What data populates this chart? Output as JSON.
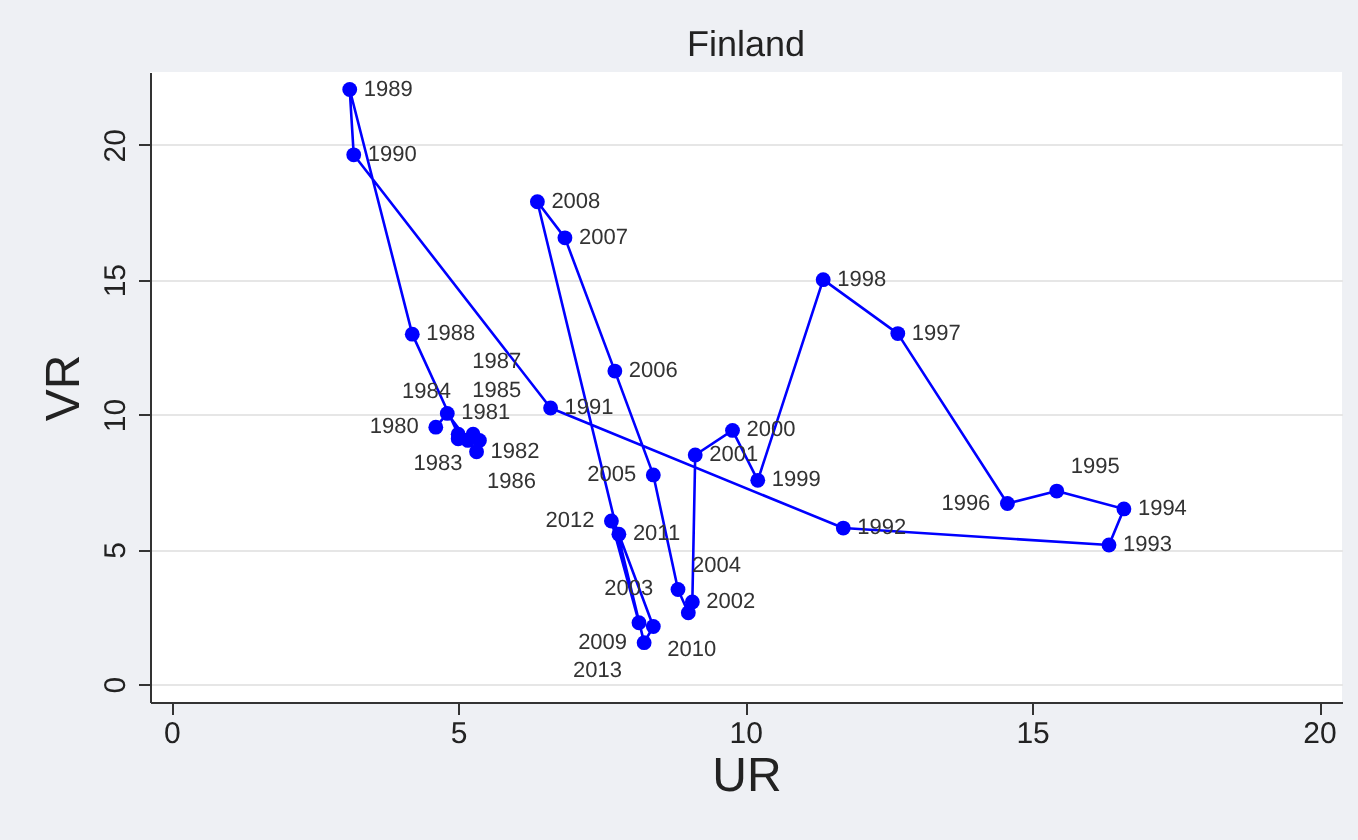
{
  "chart_data": {
    "type": "line",
    "title": "Finland",
    "xlabel": "UR",
    "ylabel": "VR",
    "xlim": [
      -0.37,
      20.4
    ],
    "ylim": [
      -0.66,
      22.7
    ],
    "xticks": [
      0,
      5,
      10,
      15,
      20
    ],
    "yticks": [
      0,
      5,
      10,
      15,
      20
    ],
    "grid": "y",
    "marker": "circle",
    "line_style": "solid",
    "series": [
      {
        "color": "#0000ff",
        "x": [
          4.61,
          4.81,
          5.32,
          5.37,
          5.17,
          5.0,
          5.26,
          5.0,
          4.2,
          3.11,
          3.18,
          6.61,
          11.71,
          16.34,
          16.6,
          15.43,
          14.57,
          12.66,
          11.36,
          10.22,
          9.78,
          9.13,
          9.08,
          9.01,
          8.83,
          8.4,
          7.73,
          6.86,
          6.38,
          8.24,
          8.4,
          7.8,
          7.67,
          8.15
        ],
        "values": [
          9.53,
          10.04,
          8.62,
          9.04,
          9.04,
          9.1,
          9.27,
          9.27,
          12.98,
          22.05,
          19.63,
          10.24,
          5.79,
          5.16,
          6.5,
          7.16,
          6.7,
          13.0,
          15.0,
          7.56,
          9.41,
          8.5,
          3.05,
          2.65,
          3.51,
          7.76,
          11.61,
          16.55,
          17.89,
          1.54,
          2.14,
          5.56,
          6.05,
          2.28
        ]
      }
    ],
    "annotations": [
      {
        "text": "1980",
        "x": 4.61,
        "y": 9.53
      },
      {
        "text": "1981",
        "x": 4.81,
        "y": 10.04
      },
      {
        "text": "1982",
        "x": 5.32,
        "y": 8.62
      },
      {
        "text": "1983",
        "x": 5.37,
        "y": 9.04
      },
      {
        "text": "1984",
        "x": 5.17,
        "y": 9.04
      },
      {
        "text": "1985",
        "x": 5.0,
        "y": 9.1
      },
      {
        "text": "1986",
        "x": 5.26,
        "y": 9.27
      },
      {
        "text": "1987",
        "x": 5.0,
        "y": 9.27
      },
      {
        "text": "1988",
        "x": 4.2,
        "y": 12.98
      },
      {
        "text": "1989",
        "x": 3.11,
        "y": 22.05
      },
      {
        "text": "1990",
        "x": 3.18,
        "y": 19.63
      },
      {
        "text": "1991",
        "x": 6.61,
        "y": 10.24
      },
      {
        "text": "1992",
        "x": 11.71,
        "y": 5.79
      },
      {
        "text": "1993",
        "x": 16.34,
        "y": 5.16
      },
      {
        "text": "1994",
        "x": 16.6,
        "y": 6.5
      },
      {
        "text": "1995",
        "x": 15.43,
        "y": 7.16
      },
      {
        "text": "1996",
        "x": 14.57,
        "y": 6.7
      },
      {
        "text": "1997",
        "x": 12.66,
        "y": 13.0
      },
      {
        "text": "1998",
        "x": 11.36,
        "y": 15.0
      },
      {
        "text": "1999",
        "x": 10.22,
        "y": 7.56
      },
      {
        "text": "2000",
        "x": 9.78,
        "y": 9.41
      },
      {
        "text": "2001",
        "x": 9.13,
        "y": 8.5
      },
      {
        "text": "2002",
        "x": 9.08,
        "y": 3.05
      },
      {
        "text": "2003",
        "x": 9.01,
        "y": 2.65
      },
      {
        "text": "2004",
        "x": 8.83,
        "y": 3.51
      },
      {
        "text": "2005",
        "x": 8.4,
        "y": 7.76
      },
      {
        "text": "2006",
        "x": 7.73,
        "y": 11.61
      },
      {
        "text": "2007",
        "x": 6.86,
        "y": 16.55
      },
      {
        "text": "2008",
        "x": 6.38,
        "y": 17.89
      },
      {
        "text": "2009",
        "x": 8.24,
        "y": 1.54
      },
      {
        "text": "2010",
        "x": 8.4,
        "y": 2.14
      },
      {
        "text": "2011",
        "x": 7.8,
        "y": 5.56
      },
      {
        "text": "2012",
        "x": 7.67,
        "y": 6.05
      },
      {
        "text": "2013",
        "x": 8.15,
        "y": 2.28
      }
    ]
  }
}
